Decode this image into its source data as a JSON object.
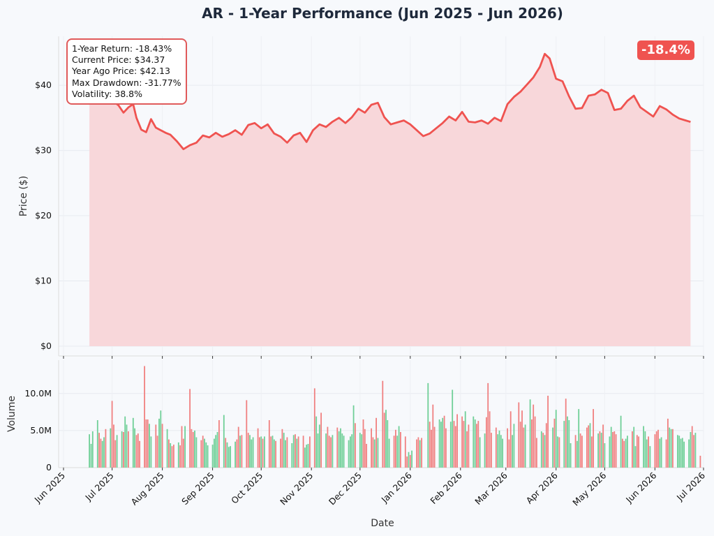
{
  "title": "AR - 1-Year Performance (Jun 2025 - Jun 2026)",
  "stats": {
    "line1": "1-Year Return: -18.43%",
    "line2": "Current Price: $34.37",
    "line3": "Year Ago Price: $42.13",
    "line4": "Max Drawdown: -31.77%",
    "line5": "Volatility: 38.8%"
  },
  "badge": "-18.4%",
  "colors": {
    "price_line": "#ef5350",
    "price_fill": "#f8d7da",
    "volume_up": "#6fcf97",
    "volume_down": "#f08080",
    "badge_bg": "#ef5350",
    "box_border": "#e05a5a"
  },
  "chart_data": [
    {
      "type": "area",
      "title": "AR - 1-Year Performance (Jun 2025 - Jun 2026)",
      "xlabel": "",
      "ylabel": "Price ($)",
      "ylim": [
        -1.5,
        47.5
      ],
      "yticks": [
        0,
        10,
        20,
        30,
        40
      ],
      "ytick_labels": [
        "$0",
        "$10",
        "$20",
        "$30",
        "$40"
      ],
      "grid": true,
      "series": [
        {
          "x": [
            "2025-06-17",
            "2025-06-22",
            "2025-06-27",
            "2025-07-02",
            "2025-07-05",
            "2025-07-08",
            "2025-07-11",
            "2025-07-14",
            "2025-07-16",
            "2025-07-19",
            "2025-07-22",
            "2025-07-25",
            "2025-07-28",
            "2025-07-31",
            "2025-08-03",
            "2025-08-06",
            "2025-08-10",
            "2025-08-14",
            "2025-08-18",
            "2025-08-22",
            "2025-08-26",
            "2025-08-30",
            "2025-09-03",
            "2025-09-07",
            "2025-09-11",
            "2025-09-15",
            "2025-09-19",
            "2025-09-23",
            "2025-09-27",
            "2025-10-01",
            "2025-10-05",
            "2025-10-09",
            "2025-10-13",
            "2025-10-17",
            "2025-10-21",
            "2025-10-25",
            "2025-10-29",
            "2025-11-02",
            "2025-11-06",
            "2025-11-10",
            "2025-11-14",
            "2025-11-18",
            "2025-11-22",
            "2025-11-26",
            "2025-11-30",
            "2025-12-04",
            "2025-12-08",
            "2025-12-12",
            "2025-12-16",
            "2025-12-20",
            "2025-12-24",
            "2025-12-28",
            "2026-01-01",
            "2026-01-05",
            "2026-01-09",
            "2026-01-13",
            "2026-01-17",
            "2026-01-21",
            "2026-01-25",
            "2026-01-29",
            "2026-02-02",
            "2026-02-06",
            "2026-02-10",
            "2026-02-14",
            "2026-02-18",
            "2026-02-22",
            "2026-02-26",
            "2026-03-02",
            "2026-03-06",
            "2026-03-10",
            "2026-03-14",
            "2026-03-18",
            "2026-03-22",
            "2026-03-25",
            "2026-03-28",
            "2026-04-01",
            "2026-04-05",
            "2026-04-09",
            "2026-04-13",
            "2026-04-17",
            "2026-04-21",
            "2026-04-25",
            "2026-04-29",
            "2026-05-03",
            "2026-05-07",
            "2026-05-11",
            "2026-05-15",
            "2026-05-19",
            "2026-05-23",
            "2026-05-27",
            "2026-05-31",
            "2026-06-04",
            "2026-06-08",
            "2026-06-12",
            "2026-06-16",
            "2026-06-20",
            "2026-06-23"
          ],
          "values": [
            42.1,
            40.8,
            39.0,
            37.5,
            36.9,
            35.8,
            36.6,
            37.1,
            35.0,
            33.2,
            32.8,
            34.8,
            33.5,
            33.1,
            32.7,
            32.4,
            31.4,
            30.2,
            30.8,
            31.2,
            32.3,
            32.0,
            32.7,
            32.1,
            32.5,
            33.1,
            32.4,
            33.9,
            34.2,
            33.4,
            34.0,
            32.6,
            32.1,
            31.2,
            32.3,
            32.7,
            31.3,
            33.1,
            34.0,
            33.6,
            34.4,
            35.0,
            34.2,
            35.1,
            36.4,
            35.8,
            37.0,
            37.3,
            35.1,
            34.0,
            34.3,
            34.6,
            34.0,
            33.1,
            32.2,
            32.6,
            33.4,
            34.2,
            35.2,
            34.6,
            35.9,
            34.4,
            34.3,
            34.6,
            34.1,
            35.0,
            34.5,
            37.1,
            38.2,
            39.0,
            40.1,
            41.2,
            42.8,
            44.8,
            44.1,
            41.0,
            40.6,
            38.3,
            36.4,
            36.5,
            38.4,
            38.6,
            39.3,
            38.8,
            36.2,
            36.4,
            37.6,
            38.4,
            36.6,
            35.9,
            35.2,
            36.8,
            36.3,
            35.5,
            34.9,
            34.6,
            34.37
          ]
        }
      ]
    },
    {
      "type": "bar",
      "xlabel": "Date",
      "ylabel": "Volume",
      "ylim": [
        0,
        14500000
      ],
      "yticks": [
        0,
        5000000,
        10000000
      ],
      "ytick_labels": [
        "0",
        "5.0M",
        "10.0M"
      ],
      "x_start": "2025-06-17",
      "x_step_days": 1,
      "x_tick_labels": [
        "Jun 2025",
        "Jul 2025",
        "Aug 2025",
        "Sep 2025",
        "Oct 2025",
        "Nov 2025",
        "Dec 2025",
        "Jan 2026",
        "Feb 2026",
        "Mar 2026",
        "Apr 2026",
        "May 2026",
        "Jun 2026",
        "Jul 2026"
      ],
      "x_tick_dates": [
        "2025-06-01",
        "2025-07-01",
        "2025-08-01",
        "2025-09-01",
        "2025-10-01",
        "2025-11-01",
        "2025-12-01",
        "2026-01-01",
        "2026-02-01",
        "2026-03-01",
        "2026-04-01",
        "2026-05-01",
        "2026-06-01",
        "2026-07-01"
      ],
      "grid": true,
      "series": [
        {
          "name": "Volume",
          "values": [
            4.5,
            3.2,
            4.9,
            0,
            0,
            6.4,
            4.7,
            3.9,
            3.6,
            4.1,
            5.2,
            0,
            0,
            5.3,
            9.0,
            5.8,
            3.7,
            4.4,
            0,
            0,
            4.9,
            4.8,
            6.9,
            5.8,
            4.9,
            0,
            0,
            6.7,
            5.3,
            4.4,
            4.6,
            3.6,
            0,
            0,
            13.7,
            6.5,
            6.5,
            5.9,
            4.2,
            0,
            0,
            5.8,
            4.3,
            6.6,
            7.7,
            5.9,
            0,
            0,
            5.2,
            3.8,
            3.3,
            2.9,
            3.1,
            0,
            0,
            3.4,
            3.0,
            5.6,
            3.9,
            5.6,
            0,
            0,
            10.6,
            5.2,
            4.8,
            5.0,
            4.1,
            0,
            0,
            3.7,
            4.3,
            3.9,
            3.4,
            3.0,
            0,
            0,
            3.1,
            3.9,
            4.4,
            4.8,
            6.4,
            0,
            0,
            7.1,
            4.0,
            3.4,
            2.8,
            2.9,
            0,
            0,
            3.5,
            3.8,
            5.5,
            4.3,
            4.4,
            0,
            0,
            9.1,
            4.7,
            4.4,
            3.8,
            4.1,
            0,
            0,
            5.3,
            4.1,
            4.2,
            3.9,
            4.2,
            0,
            0,
            6.4,
            4.2,
            4.3,
            3.8,
            3.6,
            0,
            0,
            3.9,
            5.2,
            4.7,
            3.7,
            4.1,
            0,
            0,
            3.3,
            4.4,
            4.5,
            3.9,
            4.2,
            0,
            0,
            4.3,
            2.7,
            3.1,
            3.2,
            4.2,
            0,
            0,
            10.7,
            6.9,
            4.6,
            5.8,
            7.4,
            0,
            0,
            4.6,
            5.5,
            4.3,
            4.1,
            4.4,
            0,
            0,
            5.4,
            4.9,
            5.3,
            4.6,
            4.3,
            0,
            0,
            3.7,
            4.2,
            4.5,
            8.4,
            6.0,
            0,
            0,
            4.7,
            4.5,
            6.5,
            5.2,
            3.2,
            0,
            0,
            5.3,
            4.1,
            3.8,
            6.7,
            4.0,
            0,
            0,
            11.7,
            7.4,
            7.8,
            6.4,
            3.9,
            0,
            0,
            4.3,
            5.1,
            4.3,
            5.6,
            4.8,
            0,
            0,
            4.2,
            1.5,
            2.1,
            1.7,
            2.3,
            0,
            0,
            3.8,
            4.1,
            3.7,
            4.0,
            0,
            0,
            0,
            11.4,
            6.2,
            5.1,
            8.5,
            5.5,
            0,
            0,
            6.5,
            6.2,
            6.7,
            7.0,
            5.3,
            0,
            0,
            6.2,
            10.5,
            6.3,
            5.6,
            7.2,
            0,
            0,
            6.9,
            6.3,
            7.6,
            4.9,
            5.8,
            0,
            0,
            6.9,
            6.5,
            5.9,
            6.3,
            4.1,
            0,
            0,
            4.6,
            6.8,
            11.4,
            7.6,
            4.7,
            0,
            0,
            5.4,
            4.5,
            5.0,
            4.4,
            3.9,
            0,
            0,
            5.3,
            3.8,
            7.6,
            4.4,
            5.9,
            0,
            0,
            8.8,
            6.2,
            7.7,
            5.4,
            5.8,
            0,
            0,
            9.2,
            6.5,
            8.5,
            6.9,
            4.0,
            0,
            0,
            4.9,
            4.7,
            4.4,
            6.0,
            9.7,
            0,
            0,
            5.4,
            6.6,
            7.8,
            4.2,
            4.1,
            0,
            0,
            6.3,
            9.3,
            6.9,
            6.4,
            3.3,
            0,
            0,
            4.4,
            3.6,
            7.9,
            4.6,
            4.3,
            0,
            0,
            5.4,
            5.7,
            6.0,
            4.2,
            7.9,
            0,
            0,
            4.6,
            4.9,
            4.7,
            5.8,
            3.3,
            0,
            0,
            4.2,
            5.5,
            4.8,
            4.9,
            4.5,
            0,
            0,
            7.0,
            3.9,
            3.6,
            3.9,
            4.3,
            0,
            0,
            4.9,
            5.5,
            2.9,
            4.4,
            4.2,
            0,
            0,
            5.6,
            4.9,
            3.8,
            4.2,
            2.9,
            0,
            0,
            4.5,
            4.9,
            5.1,
            3.9,
            4.1,
            0,
            0,
            3.8,
            6.6,
            5.4,
            5.2,
            5.2,
            0,
            0,
            4.4,
            4.3,
            3.9,
            4.0,
            3.5,
            0,
            0,
            3.8,
            4.8,
            5.6,
            4.4,
            4.7,
            0,
            0,
            1.6
          ],
          "up": [
            1,
            1,
            1,
            1,
            1,
            1,
            0,
            0,
            1,
            1,
            0,
            0,
            0,
            1,
            0,
            0,
            0,
            1,
            1,
            1,
            1,
            0,
            1,
            1,
            0,
            0,
            1,
            1,
            1,
            0,
            0,
            0,
            0,
            0,
            0,
            0,
            0,
            1,
            1,
            1,
            1,
            0,
            0,
            1,
            1,
            0,
            0,
            0,
            1,
            0,
            1,
            0,
            0,
            0,
            1,
            1,
            0,
            0,
            0,
            1,
            1,
            1,
            0,
            0,
            0,
            1,
            1,
            1,
            0,
            0,
            0,
            1,
            1,
            1,
            0,
            0,
            1,
            1,
            1,
            1,
            0,
            0,
            0,
            1,
            0,
            1,
            1,
            1,
            1,
            0,
            1,
            0,
            0,
            1,
            0,
            0,
            0,
            0,
            0,
            1,
            1,
            1,
            1,
            0,
            0,
            0,
            1,
            0,
            1,
            0,
            1,
            0,
            0,
            1,
            1,
            0,
            1,
            0,
            0,
            0,
            1,
            1,
            0,
            0,
            0,
            1,
            1,
            0,
            1,
            0,
            1,
            1,
            0,
            1,
            1,
            1,
            0,
            0,
            0,
            0,
            1,
            1,
            1,
            0,
            0,
            1,
            1,
            0,
            0,
            0,
            1,
            0,
            0,
            0,
            1,
            1,
            1,
            1,
            0,
            0,
            1,
            1,
            1,
            1,
            0,
            0,
            0,
            1,
            1,
            0,
            0,
            0,
            1,
            1,
            0,
            0,
            1,
            0,
            1,
            0,
            0,
            0,
            0,
            1,
            1,
            1,
            1,
            0,
            0,
            0,
            1,
            1,
            0,
            0,
            0,
            0,
            0,
            1,
            0,
            1,
            1,
            1,
            0,
            0,
            1,
            0,
            1,
            1,
            1,
            1,
            0,
            0,
            0,
            0,
            0,
            0,
            1,
            1,
            1,
            0,
            0,
            1,
            0,
            1,
            1,
            0,
            0,
            0,
            0,
            1,
            0,
            0,
            1,
            0,
            0,
            1,
            1,
            1,
            1,
            0,
            0,
            1,
            1,
            1,
            1,
            0,
            0,
            0,
            0,
            0,
            0,
            0,
            1,
            1,
            1,
            1,
            0,
            1,
            0,
            0,
            0,
            1,
            1,
            1,
            1,
            0,
            0,
            0,
            0,
            1,
            1,
            1,
            1,
            0,
            0,
            0,
            0,
            0,
            1,
            1,
            0,
            1,
            0,
            0,
            1,
            0,
            1,
            0,
            1,
            1,
            0,
            1,
            0,
            1,
            0,
            1,
            1,
            1,
            1,
            0,
            0,
            1,
            1,
            0,
            0,
            0,
            0,
            0,
            0,
            1,
            0,
            0,
            0,
            1,
            1,
            0,
            1,
            0,
            1,
            1,
            0,
            1,
            1,
            0,
            0,
            0,
            0,
            0,
            1,
            0,
            0,
            1,
            1,
            1,
            0,
            0,
            1,
            1,
            0,
            0,
            0,
            0,
            1,
            1,
            1,
            0,
            1,
            1,
            1,
            0,
            0,
            0,
            1,
            1,
            1,
            0,
            0,
            0,
            1,
            1,
            0,
            0,
            0,
            1,
            1,
            1,
            1,
            1,
            0,
            0,
            1,
            1,
            0,
            0,
            1,
            1,
            0,
            0,
            0,
            1,
            1,
            1
          ]
        }
      ]
    }
  ]
}
